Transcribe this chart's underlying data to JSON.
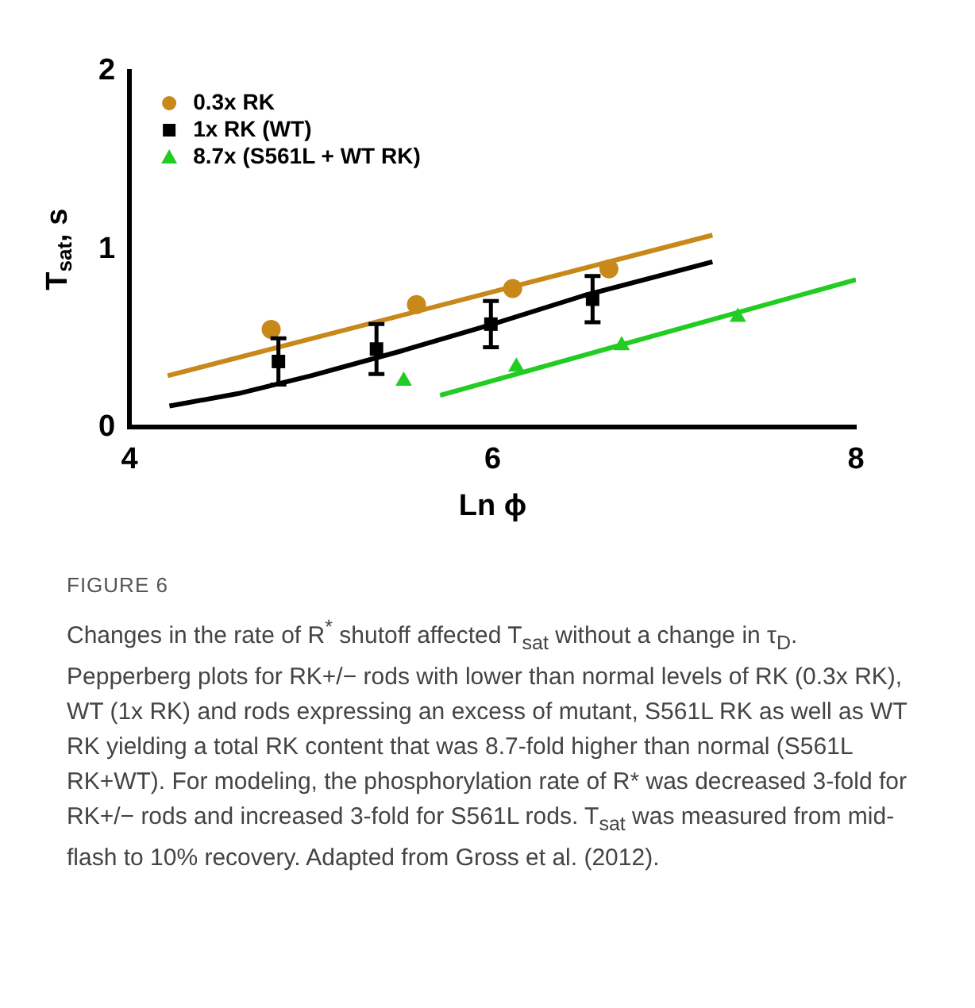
{
  "chart_data": {
    "type": "scatter",
    "xlabel": "Ln ϕ",
    "ylabel": "T$_{sat}$, s",
    "xlim": [
      4,
      8
    ],
    "xticks": [
      4,
      6,
      8
    ],
    "ylim": [
      0,
      2
    ],
    "yticks": [
      0,
      1,
      2
    ],
    "grid": false,
    "legend": "top left",
    "series": [
      {
        "name": "0.3x RK",
        "marker": "circle",
        "color": "#c8881a",
        "x": [
          4.78,
          5.58,
          6.11,
          6.64
        ],
        "values": [
          0.55,
          0.69,
          0.78,
          0.89
        ]
      },
      {
        "name": "1x RK (WT)",
        "marker": "square",
        "color": "#000000",
        "x": [
          4.82,
          5.36,
          5.99,
          6.55
        ],
        "values": [
          0.37,
          0.44,
          0.58,
          0.72
        ],
        "errors": [
          0.13,
          0.14,
          0.13,
          0.13
        ]
      },
      {
        "name": "8.7x (S561L + WT RK)",
        "marker": "triangle",
        "color": "#22cc22",
        "x": [
          5.51,
          6.13,
          6.71,
          7.35
        ],
        "values": [
          0.26,
          0.34,
          0.46,
          0.62
        ]
      },
      {
        "type": "line",
        "marker": "none",
        "color": "#c8881a",
        "x": [
          4.21,
          7.21
        ],
        "values": [
          0.29,
          1.08
        ]
      },
      {
        "type": "line",
        "marker": "none",
        "color": "#000000",
        "x": [
          4.22,
          4.6,
          5.0,
          5.5,
          6.0,
          6.5,
          7.21
        ],
        "values": [
          0.12,
          0.19,
          0.29,
          0.43,
          0.58,
          0.74,
          0.93
        ]
      },
      {
        "type": "line",
        "marker": "none",
        "color": "#22cc22",
        "x": [
          5.71,
          8.0
        ],
        "values": [
          0.18,
          0.83
        ]
      }
    ],
    "annotations": [
      "FIGURE 6",
      "Changes in the rate of R$^{*}$ shutoff affected T$_{sat}$ without a change in τ$_{D}$. Pepperberg plots for RK+/− rods with lower than normal levels of RK (0.3x RK), WT (1x RK) and rods expressing an excess of mutant, S561L RK as well as WT RK yielding a total RK content that was 8.7-fold higher than normal (S561L RK+WT). For modeling, the phosphorylation rate of R* was decreased 3-fold for RK+/− rods and increased 3-fold for S561L rods. T$_{sat}$ was measured from mid-flash to 10% recovery. Adapted from Gross et al. (2012)."
    ]
  }
}
